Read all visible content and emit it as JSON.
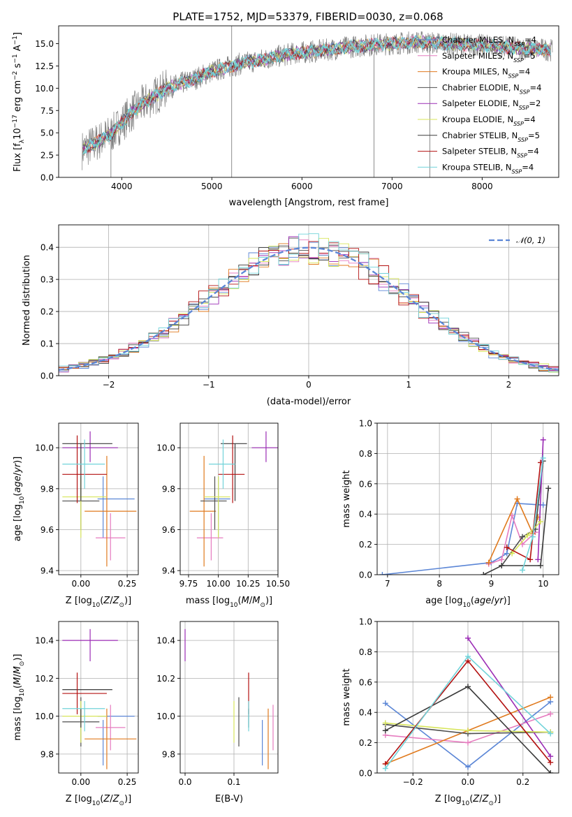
{
  "title": "PLATE=1752, MJD=53379, FIBERID=0030, z=0.068",
  "colors": {
    "Chabrier MILES": "#5b86d6",
    "Salpeter MILES": "#e67bbf",
    "Kroupa MILES": "#e07a1e",
    "Chabrier ELODIE": "#4e4e4e",
    "Salpeter ELODIE": "#9b2cb5",
    "Kroupa ELODIE": "#d7e55a",
    "Chabrier STELIB": "#3a3a3a",
    "Salpeter STELIB": "#b31010",
    "Kroupa STELIB": "#71d3d9",
    "data": "#808080",
    "normal": "#5b86d6"
  },
  "chart_data": [
    {
      "id": "spectrum",
      "type": "line",
      "title": "PLATE=1752, MJD=53379, FIBERID=0030, z=0.068",
      "xlabel": "wavelength [Angstrom, rest frame]",
      "ylabel": "Flux [fλ10⁻¹⁷ erg cm⁻² s⁻¹ A⁻¹]",
      "xlim": [
        3300,
        8850
      ],
      "ylim": [
        0,
        17
      ],
      "xticks": [
        "4000",
        "5000",
        "6000",
        "7000",
        "8000"
      ],
      "yticks": [
        "0.0",
        "2.5",
        "5.0",
        "7.5",
        "10.0",
        "12.5",
        "15.0"
      ],
      "grid": false,
      "legend_position": "right",
      "legend": [
        "Chabrier MILES, N<sub>SSP</sub>=4",
        "Salpeter MILES, N<sub>SSP</sub>=5",
        "Kroupa MILES, N<sub>SSP</sub>=4",
        "Chabrier ELODIE, N<sub>SSP</sub>=4",
        "Salpeter ELODIE, N<sub>SSP</sub>=2",
        "Kroupa ELODIE, N<sub>SSP</sub>=4",
        "Chabrier STELIB, N<sub>SSP</sub>=5",
        "Salpeter STELIB, N<sub>SSP</sub>=4",
        "Kroupa STELIB, N<sub>SSP</sub>=4"
      ],
      "legend_series": [
        "Chabrier MILES",
        "Salpeter MILES",
        "Kroupa MILES",
        "Chabrier ELODIE",
        "Salpeter ELODIE",
        "Kroupa ELODIE",
        "Chabrier STELIB",
        "Salpeter STELIB",
        "Kroupa STELIB"
      ],
      "continuum_x": [
        3550,
        3700,
        3900,
        4100,
        4300,
        4500,
        4800,
        5000,
        5300,
        5600,
        5900,
        6200,
        6500,
        6800,
        7000,
        7300,
        7600,
        8000,
        8400,
        8600,
        8750
      ],
      "continuum_y": [
        3.0,
        3.8,
        5.0,
        7.2,
        8.7,
        10.0,
        11.0,
        11.9,
        12.7,
        13.3,
        13.9,
        14.2,
        14.6,
        14.9,
        15.0,
        15.2,
        15.0,
        14.8,
        14.5,
        14.4,
        14.3
      ]
    },
    {
      "id": "residuals",
      "type": "line",
      "xlabel": "(data-model)/error",
      "ylabel": "Normed distribution",
      "xlim": [
        -2.5,
        2.5
      ],
      "ylim": [
        0,
        0.47
      ],
      "xticks": [
        "−2",
        "−1",
        "0",
        "1",
        "2"
      ],
      "yticks": [
        "0.0",
        "0.1",
        "0.2",
        "0.3",
        "0.4"
      ],
      "grid": true,
      "legend_position": "top-right",
      "legend_label": "𝒩(0, 1)",
      "bin_width": 0.1
    },
    {
      "id": "age-vs-z",
      "type": "scatter",
      "xlabel": "Z [log10(Z/Z⊙)]",
      "ylabel": "age  [log10(age/yr)]",
      "xlim": [
        -0.12,
        0.31
      ],
      "ylim": [
        9.38,
        10.12
      ],
      "xticks": [
        "0.00",
        "0.25"
      ],
      "yticks": [
        "9.4",
        "9.6",
        "9.8",
        "10.0"
      ],
      "grid": true
    },
    {
      "id": "age-vs-mass",
      "type": "scatter",
      "xlabel": "mass [log10(M/M⊙)]",
      "xlim": [
        9.68,
        10.5
      ],
      "ylim": [
        9.38,
        10.12
      ],
      "xticks": [
        "9.75",
        "10.00",
        "10.25",
        "10.50"
      ],
      "yticks": [
        "9.4",
        "9.6",
        "9.8",
        "10.0"
      ],
      "grid": true
    },
    {
      "id": "weight-vs-age",
      "type": "line",
      "xlabel": "age  [log10(age/yr)]",
      "ylabel": "mass weight",
      "xlim": [
        6.8,
        10.3
      ],
      "ylim": [
        0,
        1.0
      ],
      "xticks": [
        "7",
        "8",
        "9",
        "10"
      ],
      "yticks": [
        "0.0",
        "0.2",
        "0.4",
        "0.6",
        "0.8",
        "1.0"
      ],
      "grid": true
    },
    {
      "id": "mass-vs-z",
      "type": "scatter",
      "xlabel": "Z [log10(Z/Z⊙)]",
      "ylabel": "mass [log10(M/M⊙)]",
      "xlim": [
        -0.12,
        0.31
      ],
      "ylim": [
        9.7,
        10.5
      ],
      "xticks": [
        "0.00",
        "0.25"
      ],
      "yticks": [
        "9.8",
        "10.0",
        "10.2",
        "10.4"
      ],
      "grid": true
    },
    {
      "id": "mass-vs-ebv",
      "type": "scatter",
      "xlabel": "E(B-V)",
      "xlim": [
        -0.01,
        0.19
      ],
      "ylim": [
        9.7,
        10.5
      ],
      "xticks": [
        "0.0",
        "0.1"
      ],
      "yticks": [
        "9.8",
        "10.0",
        "10.2",
        "10.4"
      ],
      "grid": true
    },
    {
      "id": "weight-vs-z",
      "type": "line",
      "xlabel": "Z [log10(Z/Z⊙)]",
      "ylabel": "mass weight",
      "xlim": [
        -0.33,
        0.33
      ],
      "ylim": [
        0,
        1.0
      ],
      "xticks": [
        "−0.2",
        "0.0",
        "0.2"
      ],
      "yticks": [
        "0.0",
        "0.2",
        "0.4",
        "0.6",
        "0.8",
        "1.0"
      ],
      "grid": true
    }
  ],
  "fits": [
    {
      "series": "Chabrier MILES",
      "Z": [
        0.12,
        0.09,
        0.29
      ],
      "age": [
        9.75,
        9.56,
        9.86
      ],
      "mass": [
        10.0,
        9.74,
        9.98
      ],
      "ebv": [
        0.158,
        0.1,
        0.04
      ],
      "w_age": [
        [
          6.9,
          0.0
        ],
        [
          9.0,
          0.08
        ],
        [
          9.3,
          0.14
        ],
        [
          9.5,
          0.47
        ],
        [
          10.0,
          0.46
        ]
      ],
      "w_z": [
        [
          -0.3,
          0.46
        ],
        [
          0.0,
          0.04
        ],
        [
          0.3,
          0.47
        ]
      ]
    },
    {
      "series": "Salpeter MILES",
      "Z": [
        0.16,
        0.08,
        0.24
      ],
      "age": [
        9.56,
        9.45,
        9.68
      ],
      "mass": [
        9.94,
        9.82,
        10.06
      ],
      "ebv": [
        0.18,
        0.15,
        0.09
      ],
      "w_age": [
        [
          8.95,
          0.07
        ],
        [
          9.2,
          0.1
        ],
        [
          9.4,
          0.39
        ],
        [
          9.6,
          0.2
        ],
        [
          9.85,
          0.28
        ]
      ],
      "w_z": [
        [
          -0.3,
          0.25
        ],
        [
          0.0,
          0.2
        ],
        [
          0.3,
          0.39
        ]
      ]
    },
    {
      "series": "Kroupa MILES",
      "Z": [
        0.14,
        0.02,
        0.3
      ],
      "age": [
        9.69,
        9.42,
        9.96
      ],
      "mass": [
        9.88,
        9.72,
        10.04
      ],
      "ebv": [
        0.17,
        0.04,
        0.06
      ],
      "w_age": [
        [
          8.95,
          0.08
        ],
        [
          9.5,
          0.5
        ],
        [
          9.8,
          0.27
        ],
        [
          9.9,
          0.38
        ]
      ],
      "w_z": [
        [
          -0.3,
          0.06
        ],
        [
          0.0,
          0.28
        ],
        [
          0.3,
          0.5
        ]
      ]
    },
    {
      "series": "Chabrier ELODIE",
      "Z": [
        0.0,
        -0.1,
        0.1
      ],
      "age": [
        9.74,
        9.6,
        9.86
      ],
      "mass": [
        9.97,
        9.84,
        10.1
      ],
      "ebv": [
        0.11,
        0.04,
        0.04
      ],
      "w_age": [
        [
          9.2,
          0.06
        ],
        [
          9.6,
          0.25
        ],
        [
          9.85,
          0.3
        ],
        [
          10.0,
          0.75
        ]
      ],
      "w_z": [
        [
          -0.3,
          0.32
        ],
        [
          0.0,
          0.26
        ],
        [
          0.3,
          0.27
        ]
      ]
    },
    {
      "series": "Salpeter ELODIE",
      "Z": [
        0.05,
        -0.1,
        0.2
      ],
      "age": [
        10.0,
        9.93,
        10.08
      ],
      "mass": [
        10.4,
        10.29,
        10.46
      ],
      "ebv": [
        0.0,
        0.07,
        0.1
      ],
      "w_age": [
        [
          9.9,
          0.1
        ],
        [
          10.0,
          0.89
        ]
      ],
      "w_z": [
        [
          0.0,
          0.89
        ],
        [
          0.3,
          0.11
        ]
      ]
    },
    {
      "series": "Kroupa ELODIE",
      "Z": [
        0.0,
        -0.1,
        0.14
      ],
      "age": [
        9.76,
        9.56,
        9.86
      ],
      "mass": [
        10.0,
        9.86,
        10.08
      ],
      "ebv": [
        0.1,
        0.1,
        0.06
      ],
      "w_age": [
        [
          9.4,
          0.14
        ],
        [
          9.7,
          0.26
        ],
        [
          9.95,
          0.35
        ]
      ],
      "w_z": [
        [
          -0.3,
          0.33
        ],
        [
          0.0,
          0.28
        ],
        [
          0.3,
          0.27
        ]
      ]
    },
    {
      "series": "Chabrier STELIB",
      "Z": [
        0.0,
        -0.1,
        0.17
      ],
      "age": [
        10.02,
        9.74,
        10.02
      ],
      "mass": [
        10.14,
        9.94,
        10.04
      ],
      "ebv": [
        0.13,
        0.08,
        0.07
      ],
      "w_age": [
        [
          8.85,
          0.0
        ],
        [
          9.2,
          0.06
        ],
        [
          9.95,
          0.06
        ],
        [
          10.1,
          0.57
        ]
      ],
      "w_z": [
        [
          -0.3,
          0.28
        ],
        [
          0.0,
          0.57
        ],
        [
          0.3,
          0.0
        ]
      ]
    },
    {
      "series": "Salpeter STELIB",
      "Z": [
        -0.02,
        -0.1,
        0.14
      ],
      "age": [
        9.87,
        9.73,
        10.06
      ],
      "mass": [
        10.12,
        10.01,
        10.23
      ],
      "ebv": [
        0.13,
        0.13,
        0.1
      ],
      "w_age": [
        [
          9.3,
          0.18
        ],
        [
          9.75,
          0.1
        ],
        [
          9.95,
          0.74
        ]
      ],
      "w_z": [
        [
          -0.3,
          0.06
        ],
        [
          0.0,
          0.74
        ],
        [
          0.3,
          0.07
        ]
      ]
    },
    {
      "series": "Kroupa STELIB",
      "Z": [
        0.02,
        -0.1,
        0.13
      ],
      "age": [
        9.92,
        9.8,
        10.04
      ],
      "mass": [
        10.04,
        9.92,
        10.08
      ],
      "ebv": [
        0.13,
        0.06,
        0.03
      ],
      "w_age": [
        [
          9.6,
          0.03
        ],
        [
          9.8,
          0.25
        ],
        [
          10.0,
          0.77
        ]
      ],
      "w_z": [
        [
          -0.3,
          0.03
        ],
        [
          0.0,
          0.77
        ],
        [
          0.3,
          0.26
        ]
      ]
    }
  ]
}
